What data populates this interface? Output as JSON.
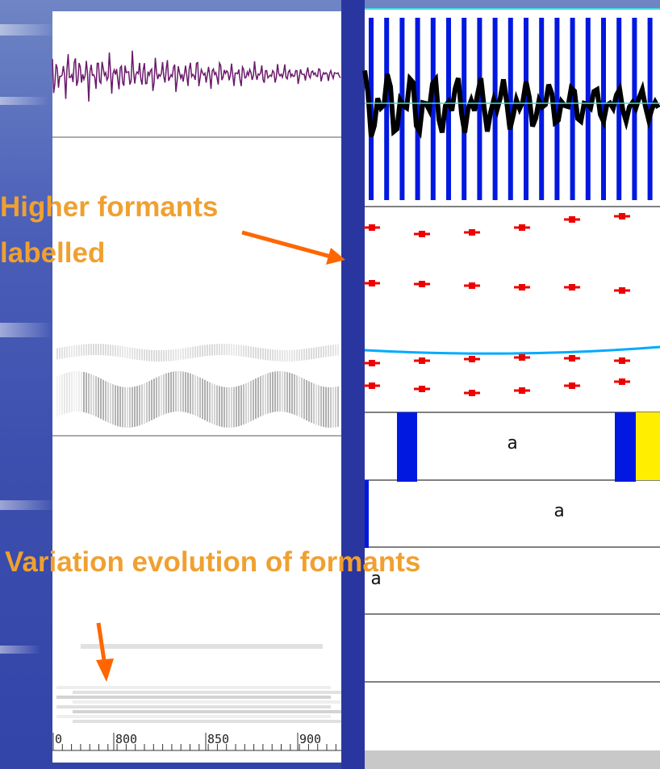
{
  "annotations": {
    "higher_formants": [
      "Higher formants",
      "labelled"
    ],
    "variation": "Variation evolution of formants"
  },
  "ruler": {
    "labels": [
      "0",
      "800",
      "850",
      "900"
    ]
  },
  "tiers": {
    "labels": [
      "a",
      "a",
      "a"
    ]
  }
}
